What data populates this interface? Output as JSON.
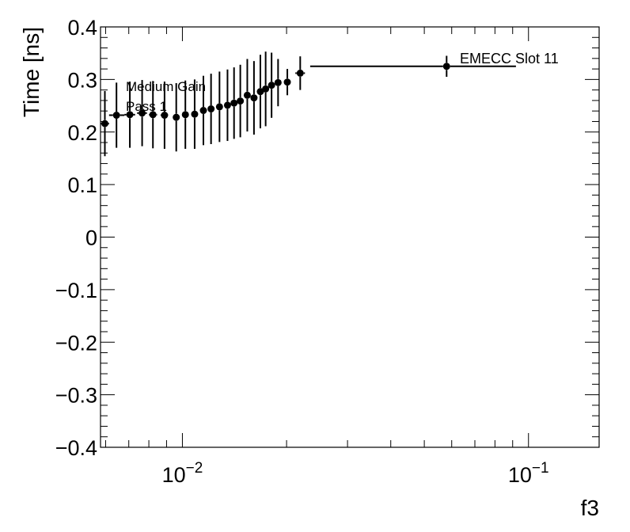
{
  "chart_data": {
    "type": "scatter",
    "xlabel": "f3",
    "ylabel": "Time [ns]",
    "xscale": "log",
    "xlim": [
      0.0058,
      0.16
    ],
    "ylim": [
      -0.4,
      0.4
    ],
    "grid": false,
    "x_tick_labels": [
      {
        "value": 0.01,
        "base": "10",
        "exp": "−2"
      },
      {
        "value": 0.1,
        "base": "10",
        "exp": "−1"
      }
    ],
    "y_ticks": [
      {
        "value": 0.4,
        "label": "0.4"
      },
      {
        "value": 0.3,
        "label": "0.3"
      },
      {
        "value": 0.2,
        "label": "0.2"
      },
      {
        "value": 0.1,
        "label": "0.1"
      },
      {
        "value": 0.0,
        "label": "0"
      },
      {
        "value": -0.1,
        "label": "−0.1"
      },
      {
        "value": -0.2,
        "label": "−0.2"
      },
      {
        "value": -0.3,
        "label": "−0.3"
      },
      {
        "value": -0.4,
        "label": "−0.4"
      }
    ],
    "annotations": [
      "Medium Gain",
      "Pass 1",
      "EMECC Slot 11"
    ],
    "series": [
      {
        "points": [
          {
            "x": 0.00597,
            "y": 0.216,
            "xlo": 0.0058,
            "xhi": 0.00614,
            "yerr": 0.062
          },
          {
            "x": 0.00645,
            "y": 0.232,
            "xlo": 0.00614,
            "xhi": 0.0068,
            "yerr": 0.062
          },
          {
            "x": 0.00705,
            "y": 0.233,
            "xlo": 0.0068,
            "xhi": 0.0073,
            "yerr": 0.063
          },
          {
            "x": 0.00765,
            "y": 0.236,
            "xlo": 0.0074,
            "xhi": 0.0079,
            "yerr": 0.063
          },
          {
            "x": 0.00822,
            "y": 0.233,
            "xlo": 0.008,
            "xhi": 0.00845,
            "yerr": 0.064
          },
          {
            "x": 0.00888,
            "y": 0.232,
            "xlo": 0.00865,
            "xhi": 0.0091,
            "yerr": 0.064
          },
          {
            "x": 0.0096,
            "y": 0.228,
            "xlo": 0.0094,
            "xhi": 0.0098,
            "yerr": 0.065
          },
          {
            "x": 0.0102,
            "y": 0.233,
            "xlo": 0.01,
            "xhi": 0.0104,
            "yerr": 0.065
          },
          {
            "x": 0.01085,
            "y": 0.234,
            "xlo": 0.0107,
            "xhi": 0.011,
            "yerr": 0.066
          },
          {
            "x": 0.0115,
            "y": 0.241,
            "xlo": 0.01135,
            "xhi": 0.01165,
            "yerr": 0.066
          },
          {
            "x": 0.0121,
            "y": 0.244,
            "xlo": 0.01195,
            "xhi": 0.01225,
            "yerr": 0.067
          },
          {
            "x": 0.0128,
            "y": 0.248,
            "xlo": 0.01265,
            "xhi": 0.01295,
            "yerr": 0.067
          },
          {
            "x": 0.0135,
            "y": 0.251,
            "xlo": 0.01335,
            "xhi": 0.01365,
            "yerr": 0.068
          },
          {
            "x": 0.0141,
            "y": 0.255,
            "xlo": 0.01395,
            "xhi": 0.01425,
            "yerr": 0.068
          },
          {
            "x": 0.0147,
            "y": 0.259,
            "xlo": 0.01455,
            "xhi": 0.01485,
            "yerr": 0.069
          },
          {
            "x": 0.0154,
            "y": 0.27,
            "xlo": 0.01525,
            "xhi": 0.01555,
            "yerr": 0.069
          },
          {
            "x": 0.0161,
            "y": 0.265,
            "xlo": 0.01595,
            "xhi": 0.01625,
            "yerr": 0.07
          },
          {
            "x": 0.0168,
            "y": 0.277,
            "xlo": 0.01665,
            "xhi": 0.01695,
            "yerr": 0.07
          },
          {
            "x": 0.0174,
            "y": 0.282,
            "xlo": 0.01725,
            "xhi": 0.01755,
            "yerr": 0.071
          },
          {
            "x": 0.0181,
            "y": 0.289,
            "xlo": 0.01795,
            "xhi": 0.01825,
            "yerr": 0.062
          },
          {
            "x": 0.0189,
            "y": 0.294,
            "xlo": 0.0187,
            "xhi": 0.0191,
            "yerr": 0.045
          },
          {
            "x": 0.0201,
            "y": 0.295,
            "xlo": 0.0199,
            "xhi": 0.0204,
            "yerr": 0.025
          },
          {
            "x": 0.0219,
            "y": 0.312,
            "xlo": 0.0212,
            "xhi": 0.0226,
            "yerr": 0.032
          },
          {
            "x": 0.058,
            "y": 0.325,
            "xlo": 0.0234,
            "xhi": 0.092,
            "yerr": 0.02
          }
        ]
      }
    ]
  }
}
